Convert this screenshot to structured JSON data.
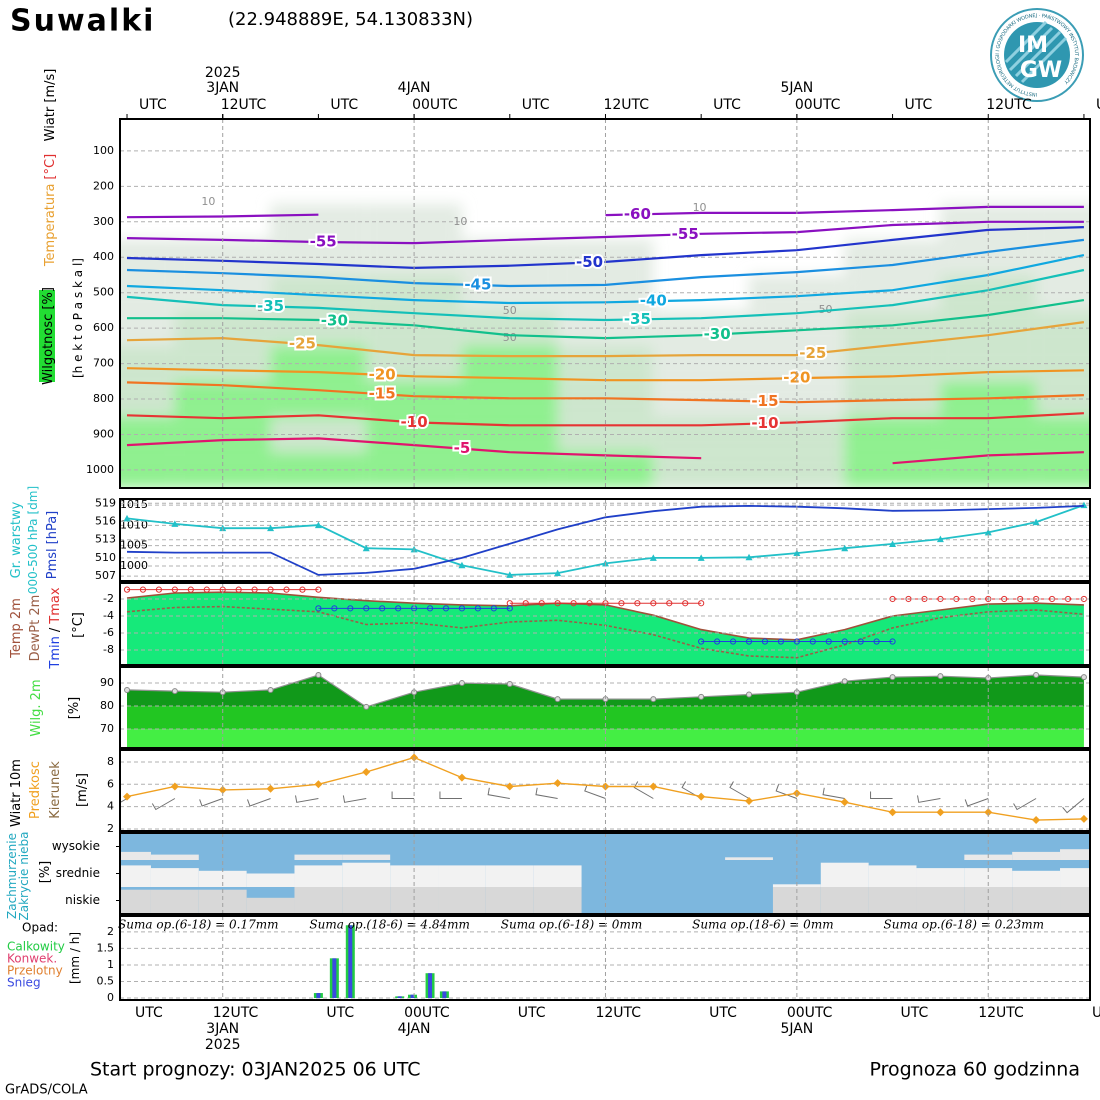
{
  "header": {
    "station": "Suwalki",
    "coords": "(22.948889E, 54.130833N)",
    "logo_top": "IM",
    "logo_bottom": "GW",
    "logo_ring": "INSTYTUT METEOROLOGII I GOSPODARKI WODNEJ · PAŃSTWOWY INSTYTUT BADAWCZY"
  },
  "time_axis": {
    "xlim": [
      -0.44,
      60.38
    ],
    "hour_ticks": [
      {
        "value": 0,
        "label": "UTC"
      },
      {
        "value": 12,
        "label": "UTC"
      },
      {
        "value": 24,
        "label": "UTC"
      },
      {
        "value": 36,
        "label": "UTC"
      },
      {
        "value": 48,
        "label": "UTC"
      },
      {
        "value": 60,
        "label": "UTC"
      }
    ],
    "main_ticks": [
      {
        "value": 6,
        "label": "12UTC"
      },
      {
        "value": 18,
        "label": "00UTC"
      },
      {
        "value": 30,
        "label": "12UTC"
      },
      {
        "value": 42,
        "label": "00UTC"
      },
      {
        "value": 54,
        "label": "12UTC"
      }
    ],
    "dates": [
      {
        "value": 6,
        "label": "3JAN"
      },
      {
        "value": 18,
        "label": "4JAN"
      },
      {
        "value": 42,
        "label": "5JAN"
      }
    ],
    "years": [
      {
        "value": 6,
        "label": "2025"
      }
    ]
  },
  "chart_data": [
    {
      "type": "upper_air",
      "wind_label": "Wiatr [m/s]",
      "temp_label": "Temperatura",
      "temp_unit": "[°C]",
      "humidity_label": "Wilgotnosc [%]",
      "y_label": "[h e k t o P a s k a l]",
      "ylim": [
        1051,
        10
      ],
      "yticks": [
        100,
        200,
        300,
        400,
        500,
        600,
        700,
        800,
        900,
        1000
      ],
      "x": [
        0,
        6,
        12,
        18,
        24,
        30,
        36,
        42,
        48,
        54,
        60
      ],
      "humidity": {
        "levels": [
          1000,
          900,
          800,
          700,
          600,
          500,
          400,
          300,
          200
        ],
        "shades": [
          {
            "min": 50,
            "color": "#e3ebe3"
          },
          {
            "min": 70,
            "color": "#cde6cd"
          },
          {
            "min": 85,
            "color": "#8ff08f"
          }
        ],
        "values": [
          [
            90,
            90,
            85,
            95,
            90,
            85,
            80,
            80,
            85,
            90,
            90
          ],
          [
            85,
            90,
            80,
            92,
            85,
            80,
            70,
            70,
            88,
            90,
            85
          ],
          [
            80,
            85,
            90,
            85,
            90,
            75,
            60,
            65,
            80,
            85,
            80
          ],
          [
            70,
            75,
            92,
            80,
            85,
            70,
            55,
            60,
            75,
            80,
            75
          ],
          [
            65,
            70,
            80,
            75,
            70,
            60,
            50,
            55,
            70,
            75,
            70
          ],
          [
            60,
            60,
            70,
            70,
            60,
            55,
            45,
            50,
            60,
            70,
            65
          ],
          [
            55,
            55,
            60,
            65,
            55,
            50,
            40,
            45,
            55,
            60,
            60
          ],
          [
            40,
            40,
            50,
            60,
            45,
            40,
            30,
            30,
            40,
            50,
            55
          ],
          [
            20,
            20,
            20,
            30,
            20,
            20,
            15,
            15,
            20,
            30,
            30
          ]
        ]
      },
      "humidity_labels": [
        {
          "text": "10",
          "x": 5.1,
          "y": 244
        },
        {
          "text": "10",
          "x": 20.9,
          "y": 300
        },
        {
          "text": "10",
          "x": 35.9,
          "y": 261
        },
        {
          "text": "50",
          "x": 8.6,
          "y": 543
        },
        {
          "text": "50",
          "x": 24,
          "y": 552
        },
        {
          "text": "50",
          "x": 24,
          "y": 628
        },
        {
          "text": "50",
          "x": 43.8,
          "y": 549
        }
      ],
      "series": [
        {
          "name": "-60",
          "color": "#8a10c0",
          "labels_at": [
            32
          ],
          "values": [
            287,
            285,
            280,
            null,
            null,
            281,
            275,
            275,
            267,
            258,
            258
          ]
        },
        {
          "name": "-55",
          "color": "#8a10c0",
          "labels_at": [
            12.3,
            35
          ],
          "values": [
            346,
            351,
            357,
            360,
            351,
            343,
            334,
            329,
            309,
            300,
            300
          ]
        },
        {
          "name": "-50",
          "color": "#2234cc",
          "labels_at": [
            29
          ],
          "values": [
            402,
            410,
            419,
            430,
            424,
            413,
            394,
            380,
            351,
            323,
            315
          ]
        },
        {
          "name": "-45",
          "color": "#1a8fe0",
          "labels_at": [
            22
          ],
          "values": [
            436,
            445,
            456,
            473,
            481,
            478,
            456,
            442,
            422,
            385,
            351
          ]
        },
        {
          "name": "-40",
          "color": "#10a8e0",
          "labels_at": [
            33
          ],
          "values": [
            481,
            493,
            507,
            521,
            529,
            527,
            521,
            510,
            493,
            450,
            394
          ]
        },
        {
          "name": "-35",
          "color": "#14c0b8",
          "labels_at": [
            9,
            32
          ],
          "values": [
            512,
            535,
            543,
            558,
            572,
            577,
            572,
            558,
            535,
            493,
            436
          ]
        },
        {
          "name": "-30",
          "color": "#12c08c",
          "labels_at": [
            13,
            37
          ],
          "values": [
            572,
            572,
            577,
            592,
            620,
            628,
            620,
            606,
            592,
            563,
            521
          ]
        },
        {
          "name": "-25",
          "color": "#e6a43a",
          "labels_at": [
            11,
            43
          ],
          "values": [
            634,
            628,
            648,
            676,
            679,
            679,
            676,
            676,
            648,
            620,
            583
          ]
        },
        {
          "name": "-20",
          "color": "#f09422",
          "labels_at": [
            16,
            42
          ],
          "values": [
            713,
            719,
            724,
            736,
            741,
            747,
            747,
            741,
            736,
            724,
            719
          ]
        },
        {
          "name": "-15",
          "color": "#f07422",
          "labels_at": [
            16,
            40
          ],
          "values": [
            753,
            761,
            775,
            792,
            798,
            798,
            803,
            809,
            803,
            798,
            789
          ]
        },
        {
          "name": "-10",
          "color": "#e63434",
          "labels_at": [
            18,
            40
          ],
          "values": [
            846,
            854,
            846,
            866,
            874,
            874,
            874,
            866,
            854,
            854,
            840
          ]
        },
        {
          "name": "-5",
          "color": "#e0146e",
          "labels_at": [
            21
          ],
          "values": [
            930,
            916,
            911,
            930,
            950,
            959,
            967,
            null,
            981,
            959,
            950
          ]
        }
      ]
    },
    {
      "type": "line",
      "ylim": [
        996.3,
        1016.5
      ],
      "yticks": [
        1000,
        1005,
        1010,
        1015
      ],
      "y2lim": [
        506.2,
        519.7
      ],
      "y2ticks": [
        507,
        510,
        513,
        516,
        519
      ],
      "units": [
        "000-500 hPa",
        "[dm]",
        "[hPa]"
      ],
      "x": [
        0,
        3,
        6,
        9,
        12,
        15,
        18,
        21,
        24,
        27,
        30,
        33,
        36,
        39,
        42,
        45,
        48,
        51,
        54,
        57,
        60
      ],
      "series": [
        {
          "name": "Gr. warstwy",
          "color": "#22c0c8",
          "axis": "y2",
          "values": [
            516.5,
            515.6,
            514.9,
            514.9,
            515.4,
            511.6,
            511.4,
            508.8,
            507.2,
            507.5,
            509.1,
            510,
            510,
            510.1,
            510.8,
            511.6,
            512.3,
            513.1,
            514.2,
            515.9,
            518.7
          ]
        },
        {
          "name": "Pmsl",
          "color": "#2040c8",
          "values": [
            1003.5,
            1003.3,
            1003.3,
            1003.3,
            997.8,
            998.3,
            999.3,
            1002,
            1005.5,
            1009,
            1012,
            1013.5,
            1014.6,
            1014.8,
            1014.6,
            1014.2,
            1013.6,
            1013.7,
            1014,
            1014.3,
            1014.8
          ]
        }
      ]
    },
    {
      "type": "temperature",
      "ylim": [
        -9.76,
        -0.12
      ],
      "yticks": [
        -2,
        -4,
        -6,
        -8
      ],
      "unit": "[°C]",
      "fill": "#16e97a",
      "separator": "/",
      "x": [
        0,
        3,
        6,
        9,
        12,
        15,
        18,
        21,
        24,
        27,
        30,
        33,
        36,
        39,
        42,
        45,
        48,
        51,
        54,
        57,
        60
      ],
      "series": [
        {
          "name": "Temp 2m",
          "color": "#a0503a",
          "values": [
            -1.9,
            -1.3,
            -1.2,
            -1.3,
            -1.8,
            -2.2,
            -2.5,
            -2.7,
            -2.8,
            -2.5,
            -2.7,
            -3.9,
            -5.6,
            -6.6,
            -6.8,
            -5.6,
            -4,
            -3.3,
            -2.6,
            -2.5,
            -2.7
          ]
        },
        {
          "name": "DewPt 2m",
          "color": "#9a6048",
          "values": [
            -3.5,
            -3,
            -2.9,
            -3.2,
            -3.5,
            -5,
            -4.8,
            -5.4,
            -4.7,
            -4.5,
            -5.1,
            -6.2,
            -7.8,
            -8.7,
            -8.9,
            -7.4,
            -5.4,
            -4.2,
            -3.5,
            -3.3,
            -3.8
          ]
        }
      ],
      "segments": [
        {
          "name": "Tmax",
          "color": "#e03030",
          "items": [
            {
              "from": 0,
              "to": 12,
              "value": -0.9
            },
            {
              "from": 24,
              "to": 36,
              "value": -2.5
            },
            {
              "from": 48,
              "to": 60,
              "value": -2
            }
          ]
        },
        {
          "name": "Tmin",
          "color": "#2040e0",
          "items": [
            {
              "from": 12,
              "to": 24,
              "value": -3.1
            },
            {
              "from": 36,
              "to": 48,
              "value": -7
            }
          ]
        }
      ]
    },
    {
      "type": "area",
      "ylim": [
        61.7,
        97
      ],
      "yticks": [
        70,
        80,
        90
      ],
      "unit": "[%]",
      "band_colors": [
        "#44ee44",
        "#22c622",
        "#11991a"
      ],
      "x": [
        0,
        3,
        6,
        9,
        12,
        15,
        18,
        21,
        24,
        27,
        30,
        33,
        36,
        39,
        42,
        45,
        48,
        51,
        54,
        57,
        60
      ],
      "series": [
        {
          "name": "Wilg. 2m",
          "color": "#909090",
          "label_color": "#44dd44",
          "values": [
            87,
            86.5,
            86,
            87,
            93.5,
            79.6,
            86,
            90,
            89.6,
            83,
            83,
            83,
            84,
            85,
            86,
            90.8,
            92.6,
            93,
            92.2,
            93.5,
            92.6
          ]
        }
      ]
    },
    {
      "type": "wind",
      "ylim": [
        1.82,
        9.07
      ],
      "yticks": [
        2,
        4,
        6,
        8
      ],
      "unit": "[m/s]",
      "title": "Wiatr 10m",
      "x": [
        0,
        3,
        6,
        9,
        12,
        15,
        18,
        21,
        24,
        27,
        30,
        33,
        36,
        39,
        42,
        45,
        48,
        51,
        54,
        57,
        60
      ],
      "series": [
        {
          "name": "Predkosc",
          "color": "#f0a020",
          "values": [
            4.9,
            5.8,
            5.5,
            5.6,
            6,
            7.1,
            8.4,
            6.6,
            5.8,
            6.1,
            5.8,
            5.8,
            4.9,
            4.5,
            5.2,
            4.4,
            3.5,
            3.5,
            3.5,
            2.8,
            2.9
          ]
        }
      ],
      "direction": {
        "name": "Kierunek",
        "color": "#8a6a40",
        "values": [
          240,
          240,
          250,
          250,
          260,
          260,
          270,
          270,
          280,
          280,
          290,
          300,
          300,
          300,
          290,
          280,
          270,
          260,
          250,
          240,
          230
        ]
      }
    },
    {
      "type": "cloud",
      "titles": [
        "Zachmurzenie",
        "Zakrycie nieba"
      ],
      "unit": "[%]",
      "background": "#7db7de",
      "x": [
        0,
        3,
        6,
        9,
        12,
        15,
        18,
        21,
        24,
        27,
        30,
        33,
        36,
        39,
        42,
        45,
        48,
        51,
        54,
        57,
        60
      ],
      "series": [
        {
          "name": "wysokie",
          "color": "#e9e9e9",
          "values": [
            30,
            20,
            0,
            0,
            20,
            20,
            0,
            0,
            0,
            0,
            0,
            0,
            0,
            10,
            0,
            0,
            0,
            0,
            20,
            30,
            40
          ]
        },
        {
          "name": "srednie",
          "color": "#f2f2f2",
          "values": [
            80,
            70,
            60,
            50,
            80,
            90,
            80,
            80,
            80,
            80,
            0,
            0,
            0,
            0,
            10,
            90,
            80,
            70,
            70,
            60,
            70
          ]
        },
        {
          "name": "niskie",
          "color": "#d8d8d8",
          "values": [
            90,
            90,
            90,
            60,
            100,
            100,
            100,
            100,
            100,
            100,
            0,
            0,
            0,
            0,
            100,
            100,
            100,
            100,
            100,
            100,
            100
          ]
        }
      ]
    },
    {
      "type": "precip",
      "legend_title": "Opad:",
      "unit": "[mm / h]",
      "ylim": [
        -0.06,
        2.48
      ],
      "yticks": [
        0,
        0.5,
        1,
        1.5,
        2
      ],
      "x": [
        12,
        13,
        14,
        17.1,
        17.9,
        19,
        19.9
      ],
      "series": [
        {
          "name": "Calkowity",
          "color": "#22cc44",
          "values": [
            0.15,
            1.2,
            2.2,
            0.05,
            0.1,
            0.75,
            0.2
          ]
        },
        {
          "name": "Konwek.",
          "color": "#e04070",
          "values": [
            0,
            0,
            0,
            0,
            0,
            0,
            0
          ]
        },
        {
          "name": "Przelotny",
          "color": "#e08030",
          "values": [
            0,
            0,
            0,
            0,
            0,
            0,
            0
          ]
        },
        {
          "name": "Snieg",
          "color": "#3a4ae0",
          "values": [
            0.15,
            1.2,
            2.2,
            0.05,
            0.1,
            0.75,
            0.2
          ]
        }
      ],
      "sums": [
        "Suma op.(6-18) = 0.17mm",
        "Suma op.(18-6) = 4.84mm",
        "Suma op.(6-18) = 0mm",
        "Suma op.(18-6) = 0mm",
        "Suma op.(6-18) = 0.23mm"
      ]
    }
  ],
  "footer": {
    "start": "Start prognozy: 03JAN2025 06 UTC",
    "range": "Prognoza 60 godzinna",
    "credit": "GrADS/COLA"
  }
}
